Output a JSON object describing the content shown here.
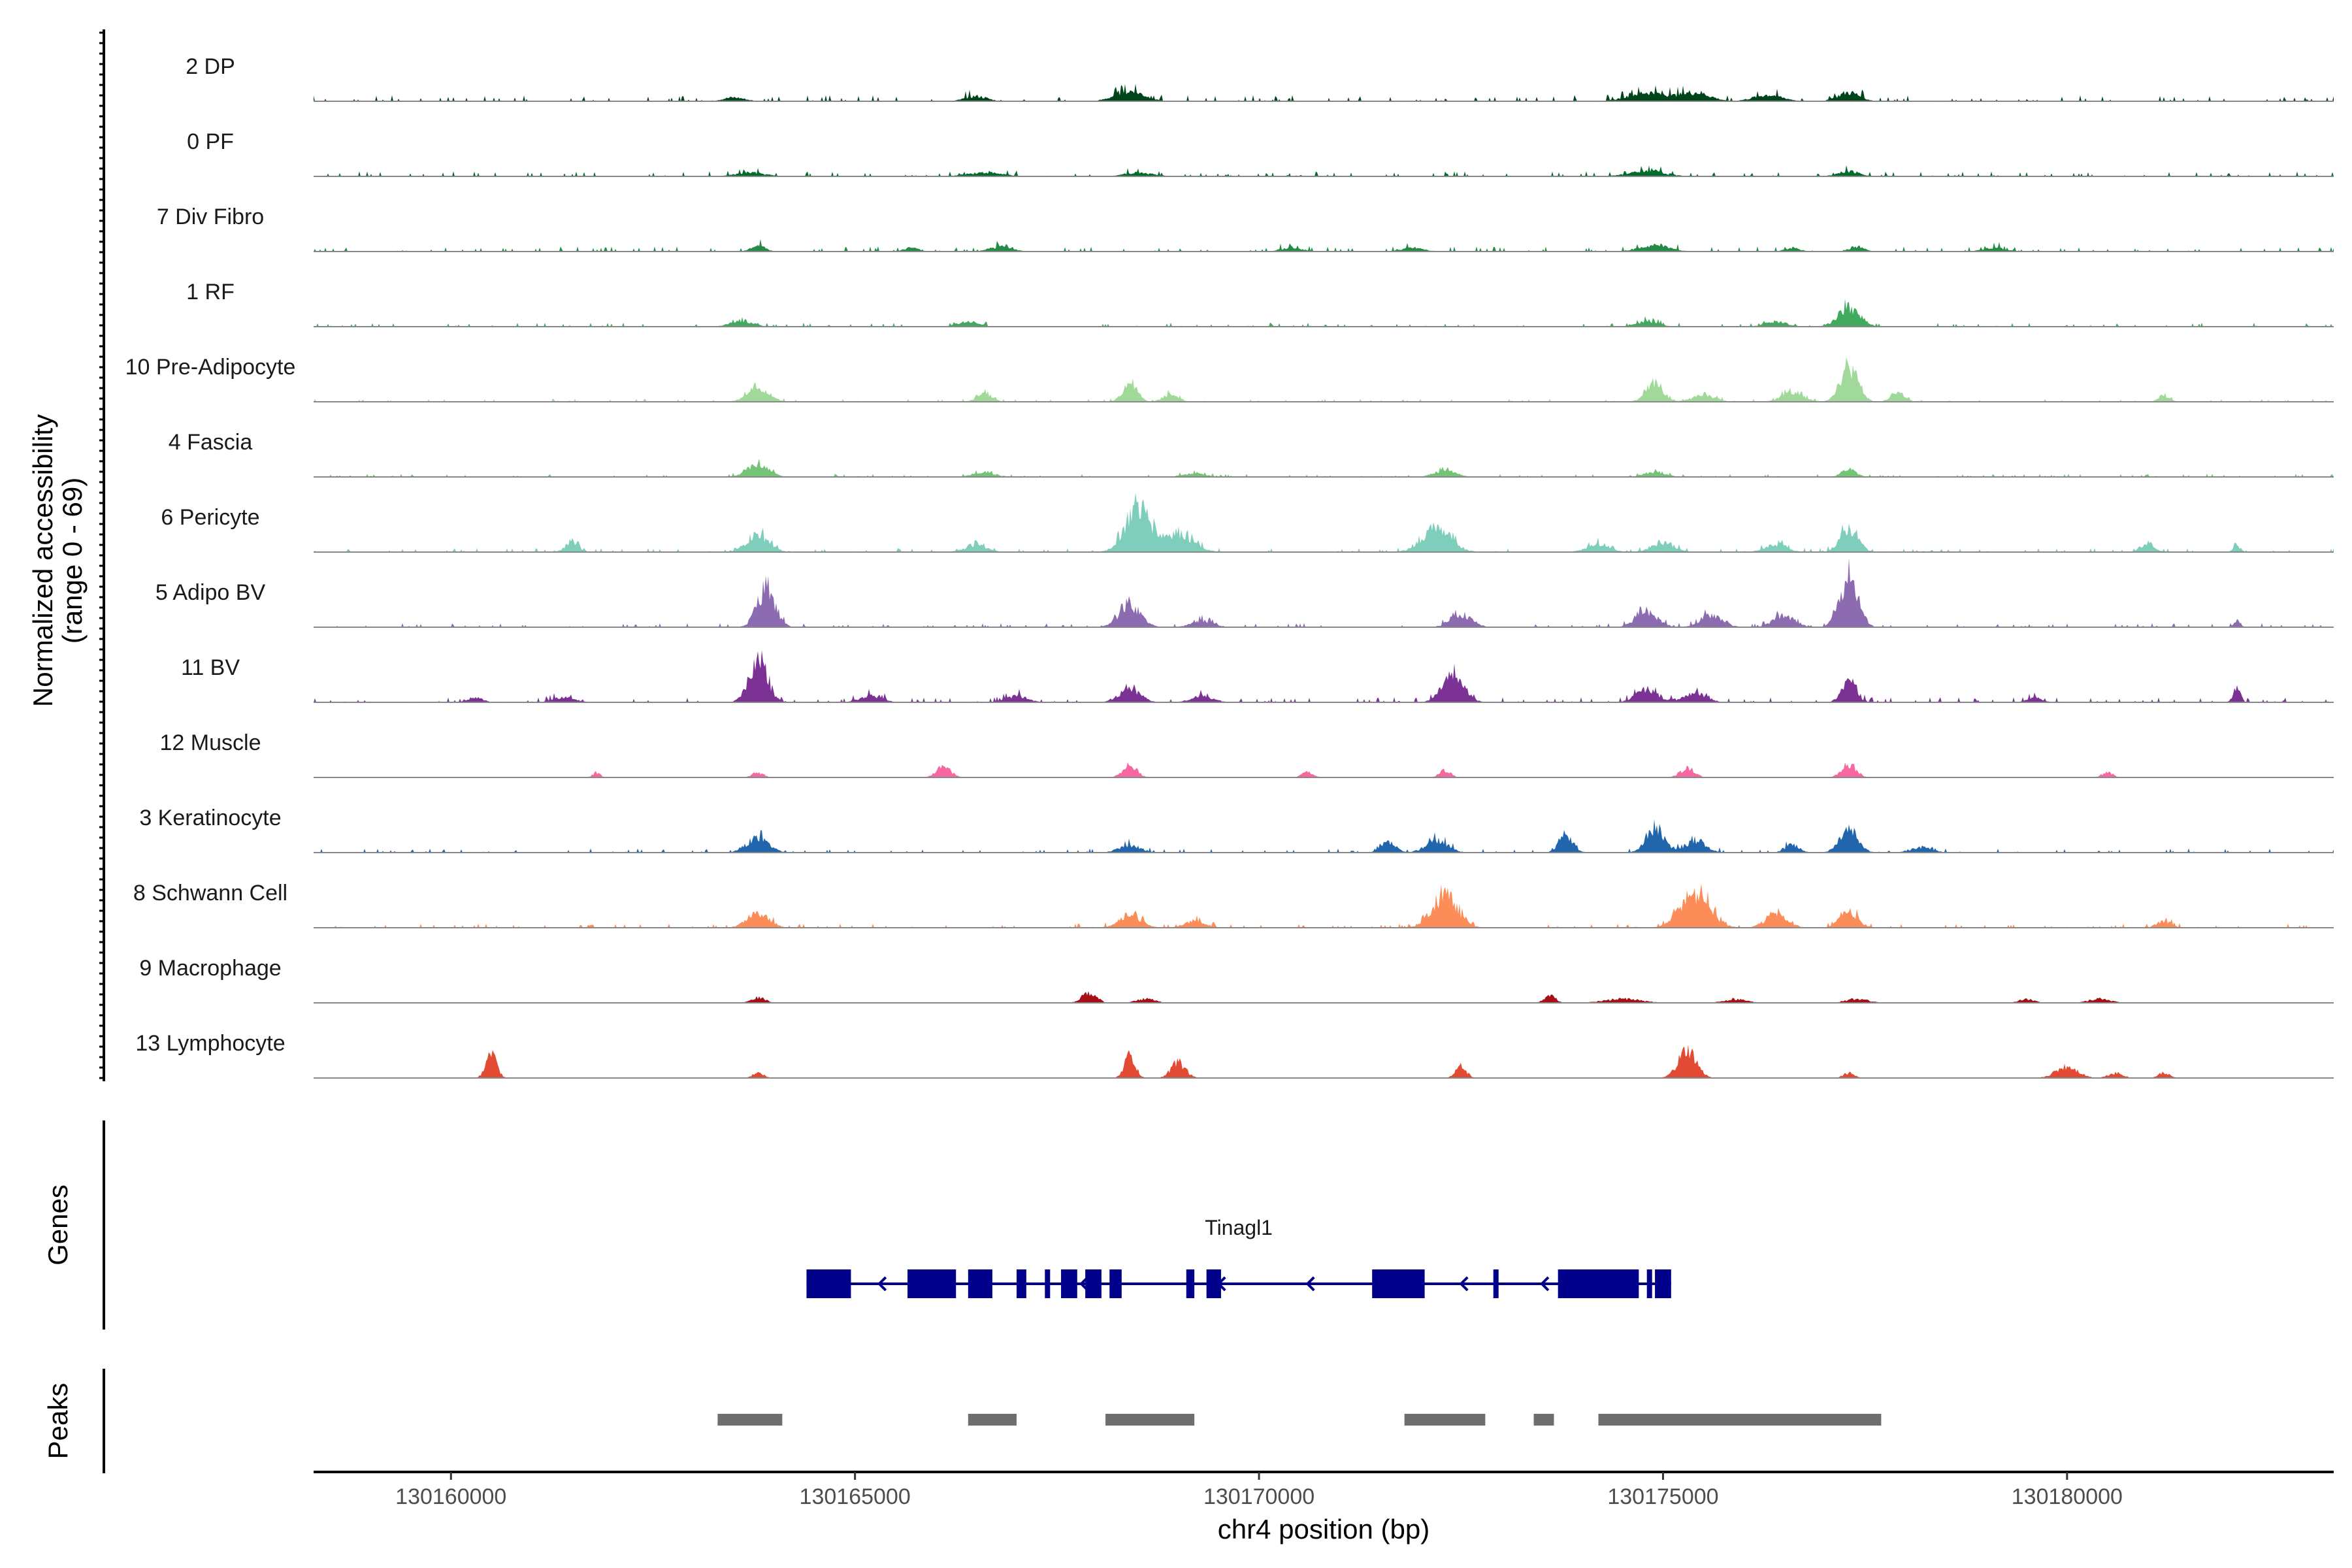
{
  "chart_data": {
    "type": "area",
    "title": "",
    "ylabel_line1": "Normalized accessibility",
    "ylabel_line2": "(range 0 - 69)",
    "xlabel": "chr4 position (bp)",
    "xlim": [
      130158300,
      130183300
    ],
    "ylim": [
      0,
      69
    ],
    "x_ticks": [
      130160000,
      130165000,
      130170000,
      130175000,
      130180000
    ],
    "x_tick_labels": [
      "130160000",
      "130165000",
      "130170000",
      "130175000",
      "130180000"
    ],
    "tracks": [
      {
        "name": "2 DP",
        "color": "#00441b",
        "base": 0.6,
        "peaks": [
          [
            130168400,
            1.6,
            400
          ],
          [
            130174800,
            1.4,
            500
          ],
          [
            130175400,
            1.4,
            400
          ],
          [
            130176300,
            1.0,
            400
          ],
          [
            130177300,
            1.4,
            300
          ],
          [
            130166500,
            0.8,
            300
          ],
          [
            130163500,
            0.6,
            300
          ]
        ]
      },
      {
        "name": "0 PF",
        "color": "#006d2c",
        "base": 0.5,
        "peaks": [
          [
            130163700,
            0.6,
            400
          ],
          [
            130166600,
            0.6,
            500
          ],
          [
            130168500,
            0.6,
            400
          ],
          [
            130174800,
            0.8,
            500
          ],
          [
            130177300,
            0.8,
            300
          ]
        ]
      },
      {
        "name": "7 Div Fibro",
        "color": "#238b45",
        "base": 0.5,
        "peaks": [
          [
            130163800,
            1.0,
            200
          ],
          [
            130165700,
            0.6,
            200
          ],
          [
            130166800,
            0.8,
            300
          ],
          [
            130170400,
            0.6,
            300
          ],
          [
            130171900,
            0.6,
            300
          ],
          [
            130174900,
            1.0,
            400
          ],
          [
            130176600,
            0.6,
            200
          ],
          [
            130177400,
            0.8,
            200
          ],
          [
            130179100,
            0.6,
            300
          ]
        ]
      },
      {
        "name": "1 RF",
        "color": "#41ab5d",
        "base": 0.4,
        "peaks": [
          [
            130163600,
            1.0,
            300
          ],
          [
            130166400,
            0.8,
            300
          ],
          [
            130174800,
            0.8,
            300
          ],
          [
            130176400,
            0.8,
            300
          ],
          [
            130177300,
            3.0,
            300
          ]
        ]
      },
      {
        "name": "10 Pre-Adipocyte",
        "color": "#a1d99b",
        "base": 0.3,
        "peaks": [
          [
            130163800,
            2.2,
            300
          ],
          [
            130166600,
            1.4,
            200
          ],
          [
            130168400,
            3.0,
            200
          ],
          [
            130168900,
            1.2,
            200
          ],
          [
            130174900,
            2.6,
            250
          ],
          [
            130175500,
            1.2,
            300
          ],
          [
            130176600,
            1.6,
            300
          ],
          [
            130177300,
            5.0,
            250
          ],
          [
            130177900,
            1.4,
            200
          ],
          [
            130181200,
            1.0,
            150
          ]
        ]
      },
      {
        "name": "4 Fascia",
        "color": "#74c476",
        "base": 0.3,
        "peaks": [
          [
            130163800,
            2.0,
            300
          ],
          [
            130166600,
            0.8,
            300
          ],
          [
            130169200,
            0.6,
            300
          ],
          [
            130172300,
            1.0,
            300
          ],
          [
            130174900,
            0.8,
            300
          ],
          [
            130177300,
            1.2,
            200
          ]
        ]
      },
      {
        "name": "6 Pericyte",
        "color": "#7fcdbb",
        "base": 0.4,
        "peaks": [
          [
            130161500,
            1.4,
            200
          ],
          [
            130163800,
            2.8,
            300
          ],
          [
            130166500,
            1.2,
            300
          ],
          [
            130168500,
            7.0,
            350
          ],
          [
            130169000,
            3.0,
            400
          ],
          [
            130172200,
            3.6,
            400
          ],
          [
            130174200,
            1.4,
            300
          ],
          [
            130175000,
            1.6,
            300
          ],
          [
            130176400,
            1.2,
            300
          ],
          [
            130177300,
            3.6,
            250
          ],
          [
            130181000,
            1.2,
            200
          ],
          [
            130182100,
            1.0,
            100
          ]
        ]
      },
      {
        "name": "5 Adipo BV",
        "color": "#8c6bb1",
        "base": 0.4,
        "peaks": [
          [
            130163900,
            6.0,
            250
          ],
          [
            130168400,
            3.4,
            300
          ],
          [
            130169300,
            1.0,
            300
          ],
          [
            130172500,
            2.0,
            300
          ],
          [
            130174800,
            2.4,
            300
          ],
          [
            130175600,
            2.0,
            300
          ],
          [
            130176500,
            1.8,
            300
          ],
          [
            130177300,
            8.0,
            250
          ],
          [
            130182100,
            1.0,
            100
          ]
        ]
      },
      {
        "name": "11 BV",
        "color": "#7b3294",
        "base": 0.5,
        "peaks": [
          [
            130160300,
            0.8,
            200
          ],
          [
            130161400,
            0.8,
            300
          ],
          [
            130163800,
            6.8,
            250
          ],
          [
            130165200,
            1.0,
            300
          ],
          [
            130167000,
            1.0,
            300
          ],
          [
            130168400,
            2.0,
            300
          ],
          [
            130169300,
            1.0,
            300
          ],
          [
            130172400,
            4.2,
            300
          ],
          [
            130174800,
            2.0,
            300
          ],
          [
            130175400,
            1.6,
            300
          ],
          [
            130177300,
            3.4,
            200
          ],
          [
            130179600,
            0.8,
            200
          ],
          [
            130182100,
            2.2,
            100
          ]
        ]
      },
      {
        "name": "12 Muscle",
        "color": "#f768a1",
        "base": 0.0,
        "peaks": [
          [
            130161800,
            0.8,
            100
          ],
          [
            130163800,
            0.8,
            150
          ],
          [
            130166100,
            1.6,
            200
          ],
          [
            130168400,
            1.8,
            200
          ],
          [
            130170600,
            0.8,
            150
          ],
          [
            130172300,
            1.2,
            150
          ],
          [
            130175300,
            1.4,
            200
          ],
          [
            130177300,
            2.0,
            200
          ],
          [
            130180500,
            0.8,
            150
          ]
        ]
      },
      {
        "name": "3 Keratinocyte",
        "color": "#2166ac",
        "base": 0.4,
        "peaks": [
          [
            130163800,
            2.4,
            300
          ],
          [
            130168400,
            1.2,
            300
          ],
          [
            130171600,
            1.6,
            200
          ],
          [
            130172200,
            2.0,
            300
          ],
          [
            130173800,
            2.6,
            200
          ],
          [
            130174900,
            3.6,
            250
          ],
          [
            130175400,
            1.8,
            300
          ],
          [
            130176600,
            1.2,
            200
          ],
          [
            130177300,
            3.8,
            250
          ],
          [
            130178200,
            0.8,
            300
          ]
        ]
      },
      {
        "name": "8 Schwann Cell",
        "color": "#fc8d59",
        "base": 0.4,
        "peaks": [
          [
            130163800,
            2.4,
            300
          ],
          [
            130168400,
            2.0,
            300
          ],
          [
            130169200,
            1.0,
            300
          ],
          [
            130172300,
            5.0,
            350
          ],
          [
            130175400,
            5.4,
            400
          ],
          [
            130176400,
            2.0,
            300
          ],
          [
            130177300,
            2.6,
            250
          ],
          [
            130181200,
            1.0,
            200
          ]
        ]
      },
      {
        "name": "9 Macrophage",
        "color": "#a50f15",
        "base": 0.0,
        "peaks": [
          [
            130163800,
            0.8,
            200
          ],
          [
            130167900,
            1.6,
            200
          ],
          [
            130168600,
            0.6,
            250
          ],
          [
            130173600,
            1.2,
            150
          ],
          [
            130174500,
            0.6,
            500
          ],
          [
            130175900,
            0.6,
            300
          ],
          [
            130177400,
            0.6,
            300
          ],
          [
            130179500,
            0.6,
            200
          ],
          [
            130180400,
            0.6,
            300
          ]
        ]
      },
      {
        "name": "13 Lymphocyte",
        "color": "#e34a33",
        "base": 0.0,
        "peaks": [
          [
            130160500,
            3.4,
            150
          ],
          [
            130163800,
            0.8,
            150
          ],
          [
            130168400,
            3.4,
            150
          ],
          [
            130169000,
            2.4,
            200
          ],
          [
            130172500,
            1.8,
            150
          ],
          [
            130175300,
            4.0,
            250
          ],
          [
            130177300,
            0.8,
            150
          ],
          [
            130180000,
            1.8,
            300
          ],
          [
            130180600,
            0.8,
            200
          ],
          [
            130181200,
            0.8,
            150
          ]
        ]
      }
    ],
    "genes": {
      "label": "Genes",
      "name": "Tinagl1",
      "strand": "-",
      "color": "#00008b",
      "start": 130164400,
      "end": 130175100,
      "exons": [
        [
          130164400,
          130164950
        ],
        [
          130165650,
          130166250
        ],
        [
          130166400,
          130166700
        ],
        [
          130167000,
          130167120
        ],
        [
          130167350,
          130167380
        ],
        [
          130167550,
          130167750
        ],
        [
          130167850,
          130168050
        ],
        [
          130168150,
          130168300
        ],
        [
          130169100,
          130169200
        ],
        [
          130169350,
          130169530
        ],
        [
          130171400,
          130172050
        ],
        [
          130172900,
          130172950
        ],
        [
          130173700,
          130174700
        ],
        [
          130174800,
          130174850
        ],
        [
          130174900,
          130175100
        ]
      ]
    },
    "peaks": {
      "label": "Peaks",
      "color": "#6e6e6e",
      "regions": [
        [
          130163300,
          130164100
        ],
        [
          130166400,
          130167000
        ],
        [
          130168100,
          130169200
        ],
        [
          130171800,
          130172800
        ],
        [
          130173400,
          130173650
        ],
        [
          130174200,
          130177700
        ]
      ]
    }
  }
}
